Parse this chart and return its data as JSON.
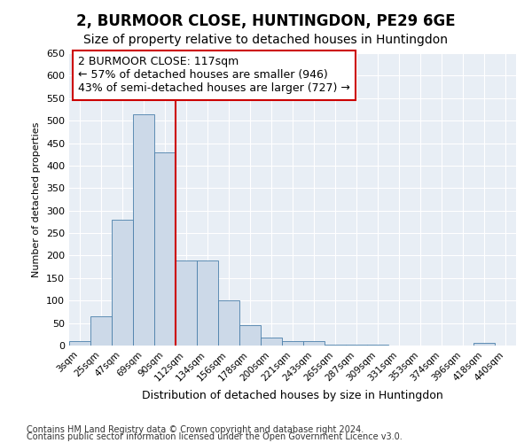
{
  "title": "2, BURMOOR CLOSE, HUNTINGDON, PE29 6GE",
  "subtitle": "Size of property relative to detached houses in Huntingdon",
  "xlabel": "Distribution of detached houses by size in Huntingdon",
  "ylabel": "Number of detached properties",
  "categories": [
    "3sqm",
    "25sqm",
    "47sqm",
    "69sqm",
    "90sqm",
    "112sqm",
    "134sqm",
    "156sqm",
    "178sqm",
    "200sqm",
    "221sqm",
    "243sqm",
    "265sqm",
    "287sqm",
    "309sqm",
    "331sqm",
    "353sqm",
    "374sqm",
    "396sqm",
    "418sqm",
    "440sqm"
  ],
  "values": [
    10,
    65,
    280,
    515,
    430,
    190,
    190,
    100,
    45,
    18,
    10,
    10,
    2,
    2,
    2,
    0,
    0,
    0,
    0,
    5,
    0
  ],
  "bar_color": "#ccd9e8",
  "bar_edge_color": "#4a7faa",
  "vline_color": "#cc0000",
  "annotation_text": "2 BURMOOR CLOSE: 117sqm\n← 57% of detached houses are smaller (946)\n43% of semi-detached houses are larger (727) →",
  "annotation_box_color": "#ffffff",
  "annotation_box_edge_color": "#cc0000",
  "ylim": [
    0,
    650
  ],
  "yticks": [
    0,
    50,
    100,
    150,
    200,
    250,
    300,
    350,
    400,
    450,
    500,
    550,
    600,
    650
  ],
  "footnote1": "Contains HM Land Registry data © Crown copyright and database right 2024.",
  "footnote2": "Contains public sector information licensed under the Open Government Licence v3.0.",
  "bg_color": "#ffffff",
  "plot_bg_color": "#e8eef5",
  "grid_color": "#ffffff",
  "title_fontsize": 12,
  "subtitle_fontsize": 10,
  "bar_width": 1.0
}
